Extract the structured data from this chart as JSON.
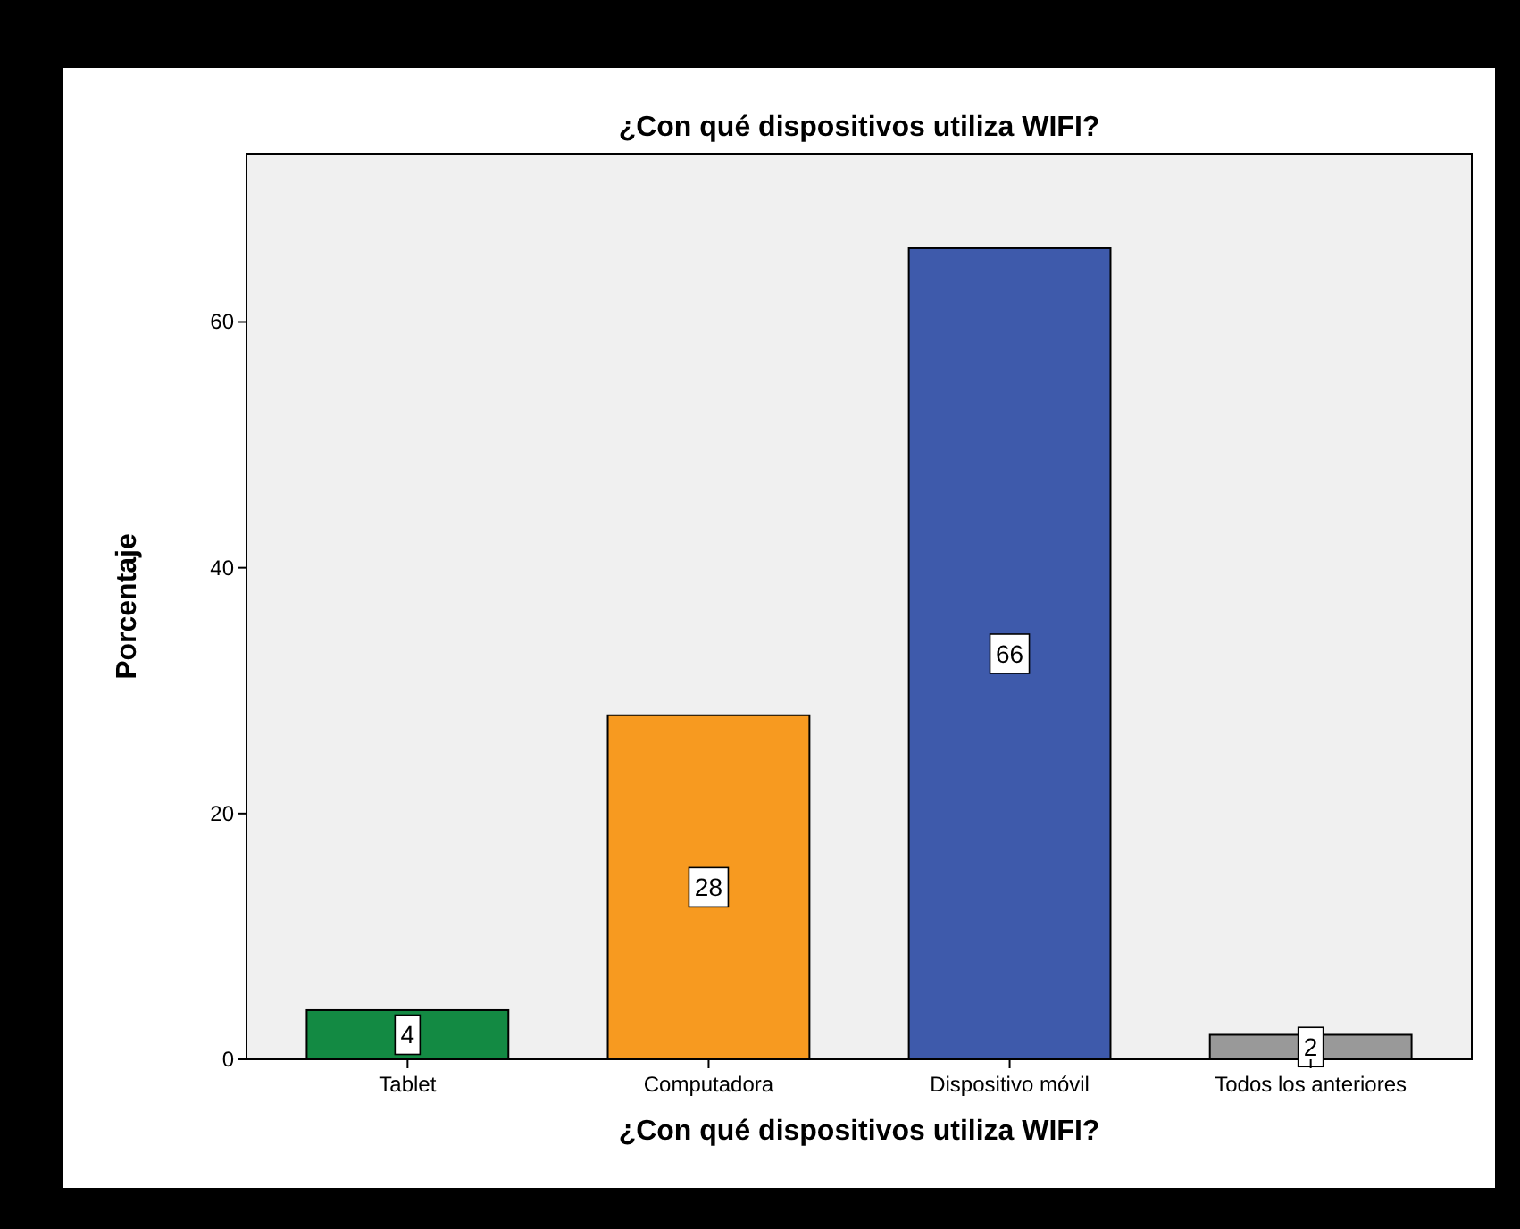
{
  "chart_data": {
    "type": "bar",
    "title": "¿Con qué dispositivos utiliza WIFI?",
    "xlabel": "¿Con qué dispositivos utiliza WIFI?",
    "ylabel": "Porcentaje",
    "categories": [
      "Tablet",
      "Computadora",
      "Dispositivo móvil",
      "Todos los anteriores"
    ],
    "values": [
      4,
      28,
      66,
      2
    ],
    "colors": [
      "#138a43",
      "#f79a20",
      "#3e5aab",
      "#999999"
    ],
    "ylim": [
      0,
      73.7
    ],
    "yticks": [
      0,
      20,
      40,
      60
    ],
    "data_labels": true
  }
}
